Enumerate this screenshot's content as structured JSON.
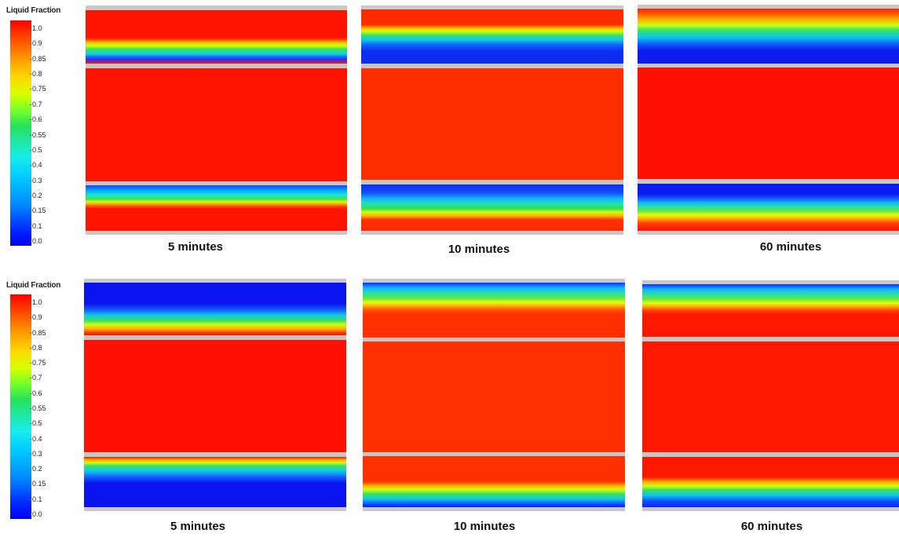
{
  "legend": {
    "title": "Liquid Fraction",
    "ticks": [
      "1.0",
      "0.9",
      "0.85",
      "0.8",
      "0.75",
      "0.7",
      "0.6",
      "0.55",
      "0.5",
      "0.4",
      "0.3",
      "0.2",
      "0.15",
      "0.1",
      "0.0"
    ]
  },
  "colors": {
    "liquid": "#ff1400",
    "solid": "#0a28f0",
    "separator": "#c6c6c6"
  },
  "rows": [
    {
      "panels": [
        {
          "caption": "5 minutes"
        },
        {
          "caption": "10 minutes"
        },
        {
          "caption": "60 minutes"
        }
      ]
    },
    {
      "panels": [
        {
          "caption": "5 minutes"
        },
        {
          "caption": "10 minutes"
        },
        {
          "caption": "60 minutes"
        }
      ]
    }
  ]
}
